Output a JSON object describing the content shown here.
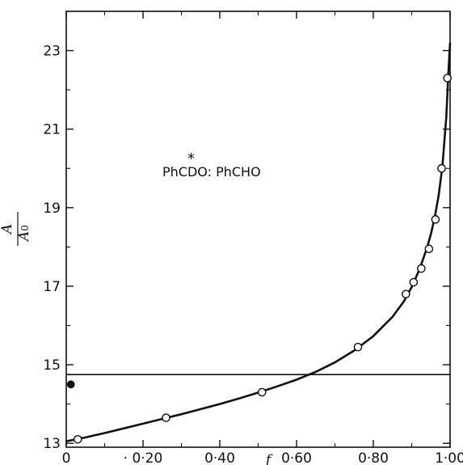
{
  "chart_data": {
    "type": "scatter",
    "annotation": {
      "star": "*",
      "text": "PhCDO: PhCHO"
    },
    "xlabel": "f",
    "ylabel": {
      "numerator": "A",
      "denominator": "A",
      "denominator_subscript": "0"
    },
    "xlim": [
      0,
      1.0
    ],
    "ylim": [
      12.9,
      24.0
    ],
    "x_ticks": [
      {
        "value": 0,
        "label": "0"
      },
      {
        "value": 0.2,
        "label": "· 0·20"
      },
      {
        "value": 0.4,
        "label": "0·40"
      },
      {
        "value": 0.6,
        "label": "0·60"
      },
      {
        "value": 0.8,
        "label": "0·80"
      },
      {
        "value": 1.0,
        "label": "1·00"
      }
    ],
    "y_ticks": [
      {
        "value": 13,
        "label": "13"
      },
      {
        "value": 15,
        "label": "15"
      },
      {
        "value": 17,
        "label": "17"
      },
      {
        "value": 19,
        "label": "19"
      },
      {
        "value": 21,
        "label": "21"
      },
      {
        "value": 23,
        "label": "23"
      }
    ],
    "minor_x": [
      0.1,
      0.3,
      0.5,
      0.7,
      0.9
    ],
    "minor_y": [
      14,
      16,
      18,
      20,
      22
    ],
    "grid": false,
    "horizontal_line": 14.75,
    "series": [
      {
        "marker": "open-circle",
        "points": [
          [
            0.03,
            13.1
          ],
          [
            0.26,
            13.65
          ],
          [
            0.51,
            14.3
          ],
          [
            0.76,
            15.45
          ],
          [
            0.885,
            16.8
          ],
          [
            0.905,
            17.1
          ],
          [
            0.925,
            17.45
          ],
          [
            0.945,
            17.95
          ],
          [
            0.962,
            18.7
          ],
          [
            0.978,
            20.0
          ],
          [
            0.993,
            22.3
          ]
        ]
      },
      {
        "marker": "filled-circle",
        "points": [
          [
            0.012,
            14.5
          ]
        ]
      }
    ],
    "fitted_curve": {
      "style": "solid",
      "points": [
        [
          0.0,
          13.05
        ],
        [
          0.05,
          13.15
        ],
        [
          0.1,
          13.26
        ],
        [
          0.15,
          13.38
        ],
        [
          0.2,
          13.5
        ],
        [
          0.25,
          13.62
        ],
        [
          0.3,
          13.74
        ],
        [
          0.35,
          13.87
        ],
        [
          0.4,
          14.0
        ],
        [
          0.45,
          14.14
        ],
        [
          0.5,
          14.29
        ],
        [
          0.55,
          14.45
        ],
        [
          0.6,
          14.62
        ],
        [
          0.65,
          14.82
        ],
        [
          0.7,
          15.06
        ],
        [
          0.75,
          15.36
        ],
        [
          0.8,
          15.73
        ],
        [
          0.85,
          16.22
        ],
        [
          0.88,
          16.62
        ],
        [
          0.9,
          16.98
        ],
        [
          0.92,
          17.42
        ],
        [
          0.94,
          17.98
        ],
        [
          0.95,
          18.33
        ],
        [
          0.96,
          18.75
        ],
        [
          0.97,
          19.3
        ],
        [
          0.98,
          20.05
        ],
        [
          0.99,
          21.3
        ],
        [
          0.995,
          22.3
        ],
        [
          1.0,
          23.2
        ]
      ]
    }
  }
}
